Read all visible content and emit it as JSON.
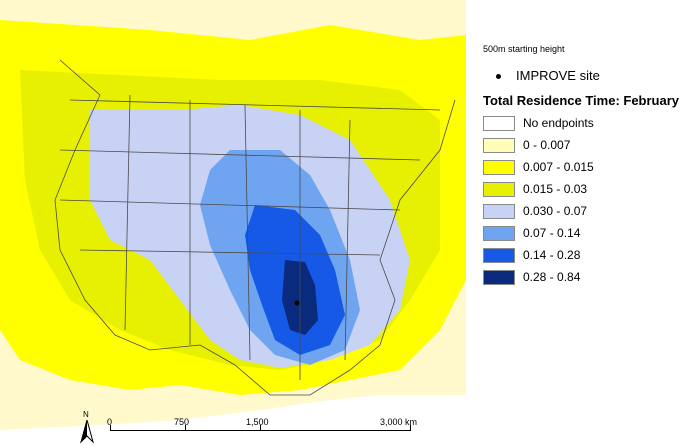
{
  "map": {
    "site_marker_name": "IMPROVE site",
    "colors": {
      "background": "#ffffff",
      "outer_halo": "#fff9cc",
      "band_0_007": "#fffdb8",
      "band_007_015": "#ffff00",
      "band_015_03": "#e6f000",
      "band_030_07": "#c8d2f5",
      "band_07_14": "#6fa5f0",
      "band_14_28": "#1659e6",
      "band_28_84": "#0a2a7d",
      "border": "#4a4a4a"
    }
  },
  "legend": {
    "subtitle": "500m starting height",
    "site_label": "IMPROVE site",
    "title": "Total Residence Time: February",
    "items": [
      {
        "label": "No endpoints",
        "color": "#ffffff"
      },
      {
        "label": "0 - 0.007",
        "color": "#fffdb8"
      },
      {
        "label": "0.007 - 0.015",
        "color": "#ffff00"
      },
      {
        "label": "0.015 - 0.03",
        "color": "#e6f000"
      },
      {
        "label": "0.030 - 0.07",
        "color": "#c8d2f5"
      },
      {
        "label": "0.07 - 0.14",
        "color": "#6fa5f0"
      },
      {
        "label": "0.14 - 0.28",
        "color": "#1659e6"
      },
      {
        "label": "0.28 - 0.84",
        "color": "#0a2a7d"
      }
    ]
  },
  "scalebar": {
    "labels": [
      "0",
      "750",
      "1,500",
      "3,000 km"
    ]
  },
  "north": {
    "label": "N"
  }
}
